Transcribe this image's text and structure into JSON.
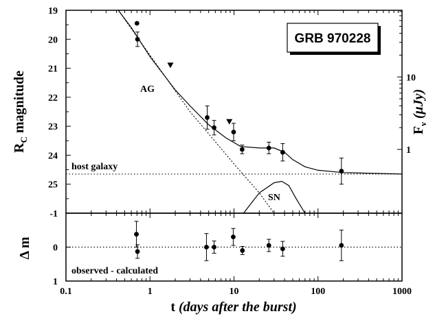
{
  "chart_data": [
    {
      "panel": "top",
      "type": "scatter",
      "xscale": "log",
      "xlim": [
        0.1,
        1000
      ],
      "ylim": [
        19,
        26
      ],
      "y_inverted": true,
      "y_ticks": [
        "19",
        "20",
        "21",
        "22",
        "23",
        "24",
        "25"
      ],
      "right_ticks": [
        {
          "label": "10",
          "mag": 21.3
        },
        {
          "label": "1",
          "mag": 23.8
        }
      ],
      "ylabel_main": "R",
      "ylabel_sub": "C",
      "ylabel_rest": " magnitude",
      "right_label_main": "F",
      "right_label_sub": "ν",
      "right_label_unit": "(μJy)",
      "title_box": "GRB 970228",
      "annotations": {
        "ag": "AG",
        "sn": "SN",
        "host": "host galaxy"
      },
      "host_level": 24.65,
      "points": [
        {
          "x": 0.7,
          "y": 19.45,
          "err": 0.0
        },
        {
          "x": 0.71,
          "y": 20.0,
          "err": 0.25
        },
        {
          "x": 4.8,
          "y": 22.7,
          "err": 0.4
        },
        {
          "x": 5.8,
          "y": 23.05,
          "err": 0.25
        },
        {
          "x": 9.9,
          "y": 23.2,
          "err": 0.3
        },
        {
          "x": 12.5,
          "y": 23.8,
          "err": 0.15
        },
        {
          "x": 26.0,
          "y": 23.75,
          "err": 0.2
        },
        {
          "x": 38.0,
          "y": 23.9,
          "err": 0.3
        },
        {
          "x": 190.0,
          "y": 24.55,
          "err": 0.45
        }
      ],
      "upper_limits": [
        {
          "x": 1.75,
          "y": 20.9
        },
        {
          "x": 8.8,
          "y": 22.85
        }
      ],
      "model_curve": [
        [
          0.42,
          19.0
        ],
        [
          0.6,
          19.6
        ],
        [
          1.0,
          20.6
        ],
        [
          2.0,
          21.75
        ],
        [
          3.0,
          22.3
        ],
        [
          5.0,
          22.95
        ],
        [
          8.0,
          23.4
        ],
        [
          12.0,
          23.7
        ],
        [
          20.0,
          23.75
        ],
        [
          30.0,
          23.75
        ],
        [
          40.0,
          23.9
        ],
        [
          50.0,
          24.15
        ],
        [
          70.0,
          24.4
        ],
        [
          100.0,
          24.52
        ],
        [
          200.0,
          24.6
        ],
        [
          1000.0,
          24.65
        ]
      ],
      "ag_curve": [
        [
          0.42,
          19.0
        ],
        [
          1.0,
          20.55
        ],
        [
          3.0,
          22.5
        ],
        [
          10.0,
          24.3
        ],
        [
          20.0,
          25.3
        ],
        [
          30.0,
          26.0
        ]
      ],
      "sn_curve": [
        [
          13.0,
          26.0
        ],
        [
          20.0,
          25.3
        ],
        [
          30.0,
          24.95
        ],
        [
          37.0,
          24.9
        ],
        [
          45.0,
          25.05
        ],
        [
          55.0,
          25.5
        ],
        [
          70.0,
          26.0
        ]
      ]
    },
    {
      "panel": "bottom",
      "type": "scatter",
      "xscale": "log",
      "xlim": [
        0.1,
        1000
      ],
      "ylim": [
        -1,
        1
      ],
      "y_inverted": true,
      "y_ticks": [
        "-1",
        "0",
        "1"
      ],
      "ylabel": "Δ m",
      "annotation": "observed - calculated",
      "x_ticks": [
        "0.1",
        "1",
        "10",
        "100",
        "1000"
      ],
      "xlabel_t": "t",
      "xlabel_rest": "(days after the burst)",
      "points": [
        {
          "x": 0.69,
          "y": -0.38,
          "err": 0.38
        },
        {
          "x": 0.71,
          "y": 0.13,
          "err": 0.2
        },
        {
          "x": 4.7,
          "y": 0.0,
          "err": 0.4
        },
        {
          "x": 5.8,
          "y": 0.0,
          "err": 0.18
        },
        {
          "x": 9.8,
          "y": -0.3,
          "err": 0.25
        },
        {
          "x": 12.6,
          "y": 0.1,
          "err": 0.12
        },
        {
          "x": 26.0,
          "y": -0.05,
          "err": 0.18
        },
        {
          "x": 38.0,
          "y": 0.05,
          "err": 0.22
        },
        {
          "x": 190.0,
          "y": -0.05,
          "err": 0.45
        }
      ]
    }
  ]
}
